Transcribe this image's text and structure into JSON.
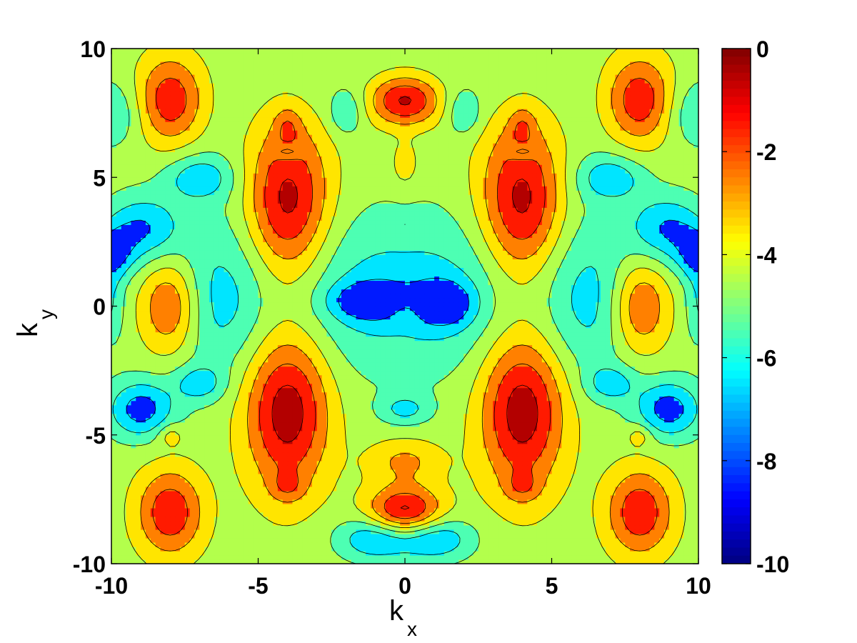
{
  "chart_data": {
    "type": "heatmap",
    "subtype": "filled-contour",
    "colormap": "jet",
    "xlabel": "k",
    "xlabel_subscript": "x",
    "ylabel": "k",
    "ylabel_subscript": "y",
    "xlim": [
      -10,
      10
    ],
    "ylim": [
      -10,
      10
    ],
    "xticks": [
      -10,
      -5,
      0,
      5,
      10
    ],
    "yticks": [
      -10,
      -5,
      0,
      5,
      10
    ],
    "xtick_labels": [
      "-10",
      "-5",
      "0",
      "5",
      "10"
    ],
    "ytick_labels": [
      "-10",
      "-5",
      "0",
      "5",
      "10"
    ],
    "colorbar": {
      "clim": [
        -10,
        0
      ],
      "ticks": [
        0,
        -2,
        -4,
        -6,
        -8,
        -10
      ],
      "tick_labels": [
        "0",
        "-2",
        "-4",
        "-6",
        "-8",
        "-10"
      ]
    },
    "contour_levels": [
      -7,
      -6,
      -5,
      -4,
      -3,
      -2,
      -1
    ],
    "background_level": -4.5,
    "features": [
      {
        "x": -4,
        "y": 4,
        "peak": -0.3,
        "rx": 1.0,
        "ry": 2.2
      },
      {
        "x": 4,
        "y": 4,
        "peak": -0.3,
        "rx": 1.0,
        "ry": 2.2
      },
      {
        "x": -4,
        "y": -4,
        "peak": -0.3,
        "rx": 1.0,
        "ry": 2.2
      },
      {
        "x": 4,
        "y": -4,
        "peak": -0.3,
        "rx": 1.0,
        "ry": 2.2
      },
      {
        "x": -8,
        "y": 8,
        "peak": -1.2,
        "rx": 0.8,
        "ry": 1.2
      },
      {
        "x": 8,
        "y": 8,
        "peak": -1.2,
        "rx": 0.8,
        "ry": 1.2
      },
      {
        "x": -8,
        "y": -8,
        "peak": -1.2,
        "rx": 0.8,
        "ry": 1.2
      },
      {
        "x": 8,
        "y": -8,
        "peak": -1.2,
        "rx": 0.8,
        "ry": 1.2
      },
      {
        "x": -8,
        "y": 0,
        "peak": -1.4,
        "rx": 0.7,
        "ry": 1.3
      },
      {
        "x": 8,
        "y": 0,
        "peak": -1.4,
        "rx": 0.7,
        "ry": 1.3
      },
      {
        "x": 0,
        "y": 8,
        "peak": -0.4,
        "rx": 0.9,
        "ry": 0.7
      },
      {
        "x": 0,
        "y": -8,
        "peak": -0.4,
        "rx": 0.9,
        "ry": 0.7
      },
      {
        "x": 0,
        "y": 0,
        "peak": -3.2,
        "rx": 0.5,
        "ry": 0.5
      },
      {
        "x": 0,
        "y": 0.5,
        "peak": -6.5,
        "rx": 3.6,
        "ry": 2.2
      },
      {
        "x": -1,
        "y": 0.2,
        "peak": -7.2,
        "rx": 1.0,
        "ry": 0.5
      },
      {
        "x": 1.3,
        "y": 0.1,
        "peak": -7.0,
        "rx": 0.7,
        "ry": 0.6
      },
      {
        "x": -6.5,
        "y": 0,
        "peak": -5.8,
        "rx": 1.2,
        "ry": 1.9
      },
      {
        "x": 6.5,
        "y": 0,
        "peak": -5.8,
        "rx": 1.2,
        "ry": 1.9
      },
      {
        "x": -9,
        "y": -4,
        "peak": -7.5,
        "rx": 0.8,
        "ry": 0.8
      },
      {
        "x": 9,
        "y": -4,
        "peak": -7.5,
        "rx": 0.8,
        "ry": 0.8
      },
      {
        "x": -9,
        "y": 3,
        "peak": -7.0,
        "rx": 0.9,
        "ry": 0.9
      },
      {
        "x": 9,
        "y": 3,
        "peak": -7.0,
        "rx": 0.9,
        "ry": 0.9
      },
      {
        "x": -7,
        "y": 5,
        "peak": -6.5,
        "rx": 0.8,
        "ry": 0.6
      },
      {
        "x": 7,
        "y": 5,
        "peak": -6.5,
        "rx": 0.8,
        "ry": 0.6
      },
      {
        "x": -7,
        "y": -3,
        "peak": -6.3,
        "rx": 0.6,
        "ry": 0.5
      },
      {
        "x": 7,
        "y": -3,
        "peak": -6.3,
        "rx": 0.6,
        "ry": 0.5
      },
      {
        "x": -1,
        "y": -9,
        "peak": -7.2,
        "rx": 0.9,
        "ry": 0.6
      },
      {
        "x": 1,
        "y": -9,
        "peak": -7.2,
        "rx": 0.9,
        "ry": 0.6
      },
      {
        "x": -2,
        "y": 7.5,
        "peak": -6.0,
        "rx": 0.4,
        "ry": 0.6
      },
      {
        "x": 2,
        "y": 7.5,
        "peak": -6.0,
        "rx": 0.4,
        "ry": 0.6
      },
      {
        "x": -10,
        "y": 7.5,
        "peak": -6.0,
        "rx": 0.8,
        "ry": 0.9
      },
      {
        "x": 10,
        "y": 7.5,
        "peak": -6.0,
        "rx": 0.8,
        "ry": 0.9
      },
      {
        "x": -10,
        "y": 2,
        "peak": -7.0,
        "rx": 0.5,
        "ry": 0.7
      },
      {
        "x": 10,
        "y": 2,
        "peak": -7.0,
        "rx": 0.5,
        "ry": 0.7
      },
      {
        "x": -10,
        "y": 0,
        "peak": -6.0,
        "rx": 0.3,
        "ry": 1.0
      },
      {
        "x": 10,
        "y": 0,
        "peak": -6.0,
        "rx": 0.3,
        "ry": 1.0
      },
      {
        "x": 0,
        "y": -6,
        "peak": -2.8,
        "rx": 0.9,
        "ry": 0.6
      },
      {
        "x": 0,
        "y": 5.5,
        "peak": -3.2,
        "rx": 0.3,
        "ry": 0.6
      },
      {
        "x": -4,
        "y": 7,
        "peak": -3.2,
        "rx": 0.3,
        "ry": 0.5
      },
      {
        "x": 4,
        "y": 7,
        "peak": -3.2,
        "rx": 0.3,
        "ry": 0.5
      },
      {
        "x": -4,
        "y": -7,
        "peak": -3.2,
        "rx": 0.4,
        "ry": 0.4
      },
      {
        "x": 4,
        "y": -7,
        "peak": -3.2,
        "rx": 0.4,
        "ry": 0.4
      },
      {
        "x": -8,
        "y": -5,
        "peak": -3.2,
        "rx": 0.3,
        "ry": 0.3
      },
      {
        "x": 8,
        "y": -5,
        "peak": -3.2,
        "rx": 0.3,
        "ry": 0.3
      },
      {
        "x": 0,
        "y": 3,
        "peak": -4.0,
        "rx": 0.4,
        "ry": 0.4
      },
      {
        "x": 0,
        "y": -4,
        "peak": -6.2,
        "rx": 0.6,
        "ry": 0.4
      },
      {
        "x": -4,
        "y": 6,
        "peak": -6.0,
        "rx": 0.3,
        "ry": 0.2
      },
      {
        "x": 4,
        "y": 6,
        "peak": -6.0,
        "rx": 0.3,
        "ry": 0.2
      },
      {
        "x": 0,
        "y": 8.3,
        "peak": -5.0,
        "rx": 2.6,
        "ry": 0.9
      },
      {
        "x": -6,
        "y": 3,
        "peak": -5.0,
        "rx": 1.6,
        "ry": 3.0
      },
      {
        "x": 6,
        "y": 3,
        "peak": -5.0,
        "rx": 1.6,
        "ry": 3.0
      }
    ]
  }
}
